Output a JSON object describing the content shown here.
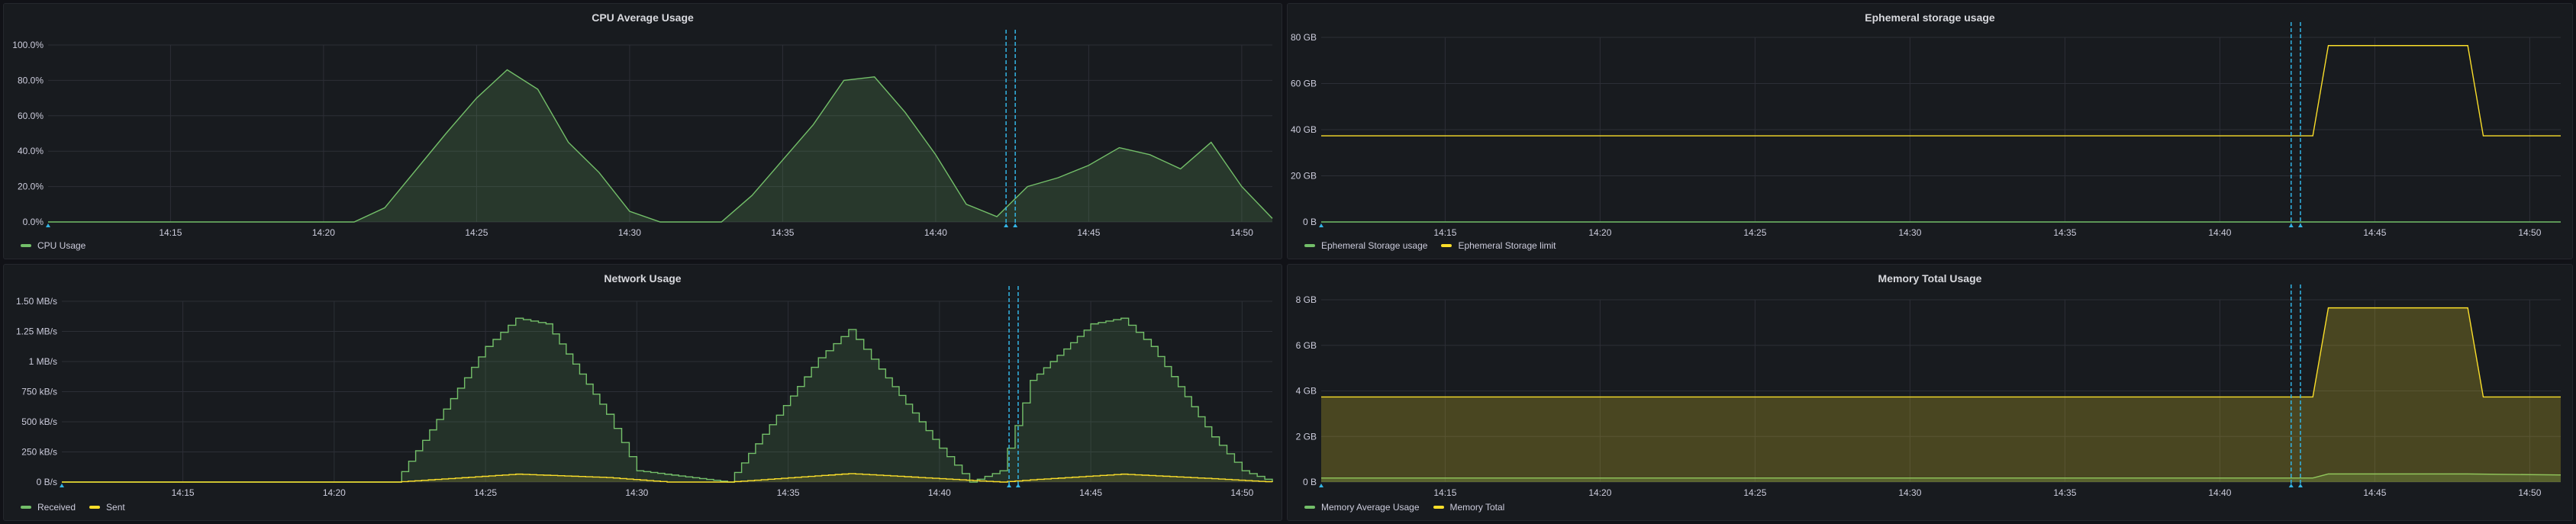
{
  "dashboard": {
    "panels": [
      {
        "id": "cpu",
        "title": "CPU Average Usage",
        "y_ticks": [
          "0.0%",
          "20.0%",
          "40.0%",
          "60.0%",
          "80.0%",
          "100.0%"
        ],
        "x_ticks": [
          "14:15",
          "14:20",
          "14:25",
          "14:30",
          "14:35",
          "14:40",
          "14:45",
          "14:50"
        ],
        "legend": [
          {
            "label": "CPU Usage",
            "color": "#73bf69"
          }
        ]
      },
      {
        "id": "ephemeral",
        "title": "Ephemeral storage usage",
        "y_ticks": [
          "0 B",
          "20 GB",
          "40 GB",
          "60 GB",
          "80 GB"
        ],
        "x_ticks": [
          "14:15",
          "14:20",
          "14:25",
          "14:30",
          "14:35",
          "14:40",
          "14:45",
          "14:50"
        ],
        "legend": [
          {
            "label": "Ephemeral Storage usage",
            "color": "#73bf69"
          },
          {
            "label": "Ephemeral Storage limit",
            "color": "#fade2a"
          }
        ]
      },
      {
        "id": "network",
        "title": "Network Usage",
        "y_ticks": [
          "0 B/s",
          "250 kB/s",
          "500 kB/s",
          "750 kB/s",
          "1 MB/s",
          "1.25 MB/s",
          "1.50 MB/s"
        ],
        "x_ticks": [
          "14:15",
          "14:20",
          "14:25",
          "14:30",
          "14:35",
          "14:40",
          "14:45",
          "14:50"
        ],
        "legend": [
          {
            "label": "Received",
            "color": "#73bf69"
          },
          {
            "label": "Sent",
            "color": "#fade2a"
          }
        ]
      },
      {
        "id": "memory",
        "title": "Memory Total Usage",
        "y_ticks": [
          "0 B",
          "2 GB",
          "4 GB",
          "6 GB",
          "8 GB"
        ],
        "x_ticks": [
          "14:15",
          "14:20",
          "14:25",
          "14:30",
          "14:35",
          "14:40",
          "14:45",
          "14:50"
        ],
        "legend": [
          {
            "label": "Memory Average Usage",
            "color": "#73bf69"
          },
          {
            "label": "Memory Total",
            "color": "#fade2a"
          }
        ]
      }
    ]
  },
  "chart_data": [
    {
      "type": "area",
      "title": "CPU Average Usage",
      "x_range": [
        "14:11",
        "14:51"
      ],
      "ylim": [
        0,
        100
      ],
      "series": [
        {
          "name": "CPU Usage",
          "color": "#73bf69",
          "x": [
            "14:11",
            "14:21",
            "14:22",
            "14:24",
            "14:25",
            "14:26",
            "14:27",
            "14:28",
            "14:29",
            "14:30",
            "14:31",
            "14:33",
            "14:34",
            "14:36",
            "14:37",
            "14:38",
            "14:39",
            "14:40",
            "14:41",
            "14:42",
            "14:43",
            "14:44",
            "14:45",
            "14:46",
            "14:47",
            "14:48",
            "14:49",
            "14:50",
            "14:51"
          ],
          "values": [
            0,
            0,
            8,
            50,
            70,
            86,
            75,
            45,
            28,
            6,
            0,
            0,
            15,
            55,
            80,
            82,
            62,
            38,
            10,
            3,
            20,
            25,
            32,
            42,
            38,
            30,
            45,
            20,
            2
          ]
        }
      ]
    },
    {
      "type": "line",
      "title": "Ephemeral storage usage",
      "x_range": [
        "14:11",
        "14:51"
      ],
      "ylim": [
        0,
        90
      ],
      "series": [
        {
          "name": "Ephemeral Storage usage",
          "color": "#73bf69",
          "x": [
            "14:11",
            "14:51"
          ],
          "values": [
            0,
            0
          ]
        },
        {
          "name": "Ephemeral Storage limit",
          "color": "#fade2a",
          "x": [
            "14:11",
            "14:43",
            "14:43.5",
            "14:48",
            "14:48.5",
            "14:51"
          ],
          "values": [
            42,
            42,
            86,
            86,
            42,
            42
          ]
        }
      ]
    },
    {
      "type": "area",
      "title": "Network Usage",
      "x_range": [
        "14:11",
        "14:51"
      ],
      "ylim": [
        0,
        1600
      ],
      "series": [
        {
          "name": "Received",
          "color": "#73bf69",
          "x": [
            "14:11",
            "14:22",
            "14:25",
            "14:26",
            "14:27",
            "14:29",
            "14:30",
            "14:33",
            "14:36",
            "14:37",
            "14:38",
            "14:40",
            "14:41",
            "14:42",
            "14:43",
            "14:45",
            "14:46",
            "14:47",
            "14:49",
            "14:50",
            "14:51"
          ],
          "values": [
            0,
            0,
            1200,
            1450,
            1400,
            600,
            100,
            0,
            1100,
            1350,
            1000,
            300,
            0,
            100,
            900,
            1400,
            1450,
            1200,
            400,
            100,
            0
          ]
        },
        {
          "name": "Sent",
          "color": "#fade2a",
          "x": [
            "14:11",
            "14:22",
            "14:26",
            "14:29",
            "14:31",
            "14:33",
            "14:37",
            "14:40",
            "14:42",
            "14:43",
            "14:46",
            "14:49",
            "14:51"
          ],
          "values": [
            0,
            0,
            70,
            40,
            0,
            0,
            75,
            30,
            0,
            20,
            70,
            30,
            0
          ]
        }
      ]
    },
    {
      "type": "area",
      "title": "Memory Total Usage",
      "x_range": [
        "14:11",
        "14:51"
      ],
      "ylim": [
        0,
        9
      ],
      "series": [
        {
          "name": "Memory Average Usage",
          "color": "#73bf69",
          "x": [
            "14:11",
            "14:43",
            "14:43.5",
            "14:48",
            "14:51"
          ],
          "values": [
            0.2,
            0.2,
            0.4,
            0.4,
            0.35
          ]
        },
        {
          "name": "Memory Total",
          "color": "#fade2a",
          "x": [
            "14:11",
            "14:43",
            "14:43.5",
            "14:48",
            "14:48.5",
            "14:51"
          ],
          "values": [
            4.2,
            4.2,
            8.6,
            8.6,
            4.2,
            4.2
          ]
        }
      ]
    }
  ]
}
